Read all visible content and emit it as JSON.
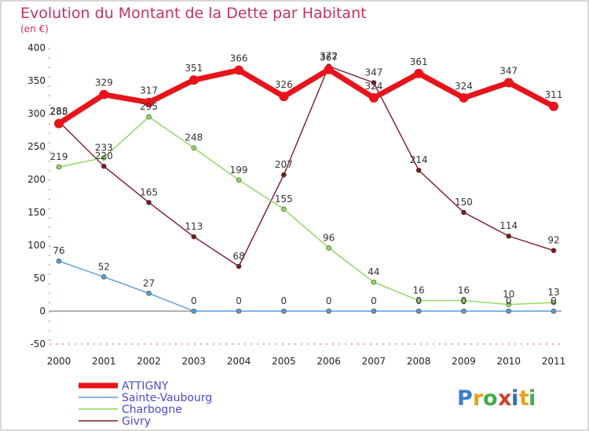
{
  "chart_data": {
    "type": "line",
    "title": "Evolution du Montant de la Dette par Habitant",
    "subtitle": "(en €)",
    "xlabel": "",
    "ylabel": "",
    "x": [
      "2000",
      "2001",
      "2002",
      "2003",
      "2004",
      "2005",
      "2006",
      "2007",
      "2008",
      "2009",
      "2010",
      "2011"
    ],
    "y_ticks": [
      "-50",
      "0",
      "50",
      "100",
      "150",
      "200",
      "250",
      "300",
      "350",
      "400"
    ],
    "ylim": [
      -50,
      400
    ],
    "grid": false,
    "legend_position": "bottom-left",
    "series": [
      {
        "name": "ATTIGNY",
        "color": "#e8141b",
        "values": [
          285,
          329,
          317,
          351,
          366,
          326,
          367,
          324,
          361,
          324,
          347,
          311
        ]
      },
      {
        "name": "Sainte-Vaubourg",
        "color": "#5b9bd5",
        "values": [
          76,
          52,
          27,
          0,
          0,
          0,
          0,
          0,
          0,
          0,
          0,
          0
        ]
      },
      {
        "name": "Charbogne",
        "color": "#8ed65e",
        "values": [
          219,
          233,
          295,
          248,
          199,
          155,
          96,
          44,
          16,
          16,
          10,
          13
        ]
      },
      {
        "name": "Givry",
        "color": "#7a1a22",
        "values": [
          288,
          220,
          165,
          113,
          68,
          207,
          372,
          347,
          214,
          150,
          114,
          92
        ]
      }
    ]
  },
  "logo": {
    "letters": [
      "P",
      "r",
      "o",
      "x",
      "i",
      "t",
      "i"
    ],
    "colors": [
      "#3a7fd0",
      "#e6a21c",
      "#3fae49",
      "#d23e2a",
      "#2f6fb8",
      "#e6a21c",
      "#3fae49"
    ]
  }
}
